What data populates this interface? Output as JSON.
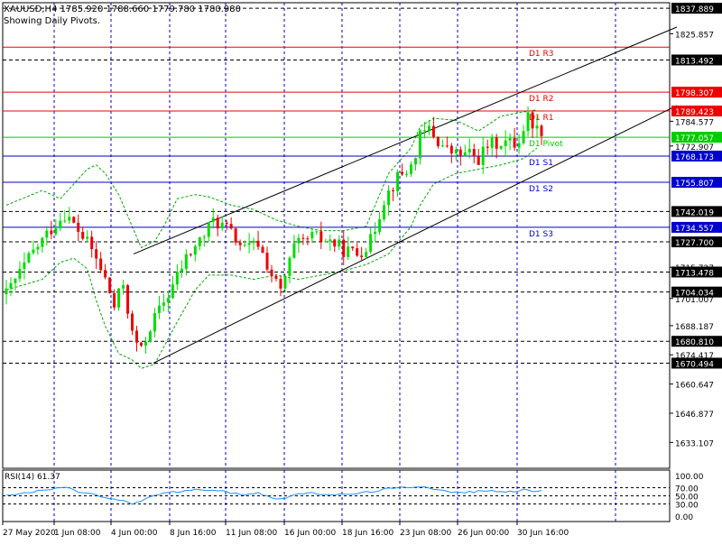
{
  "header": {
    "symbol_line": "XAUUSD,H4  1785.920 1788.660 1779.780 1780.980",
    "subtitle": "Showing Daily Pivots."
  },
  "colors": {
    "bull": "#00dd00",
    "bear": "#ee0000",
    "pivot_resistance": "#ee0000",
    "pivot_center": "#00cc00",
    "pivot_support": "#0000cc",
    "grid": "#0000cc",
    "bands": "#00aa00",
    "rsi_line": "#1e90ff"
  },
  "chart_data": [
    {
      "type": "candlestick",
      "symbol": "XAUUSD",
      "timeframe": "H4",
      "ylim": [
        1620.9,
        1840.5
      ],
      "y_ticks": [
        "1837.889",
        "1825.857",
        "1813.492",
        "1798.307",
        "1789.423",
        "1784.577",
        "1777.057",
        "1772.907",
        "1768.173",
        "1755.807",
        "1742.019",
        "1734.557",
        "1727.700",
        "1715.727",
        "1713.478",
        "1704.034",
        "1701.007",
        "1688.187",
        "1680.810",
        "1674.417",
        "1670.494",
        "1660.647",
        "1646.877",
        "1633.107"
      ],
      "x_ticks": [
        "27 May 2020",
        "1 Jun 08:00",
        "4 Jun 00:00",
        "8 Jun 16:00",
        "11 Jun 08:00",
        "16 Jun 00:00",
        "18 Jun 16:00",
        "23 Jun 08:00",
        "26 Jun 00:00",
        "30 Jun 16:00"
      ],
      "pivot_levels": [
        {
          "name": "D1 R3",
          "value": 1819.557,
          "kind": "resistance"
        },
        {
          "name": "D1 R2",
          "value": 1798.307,
          "kind": "resistance"
        },
        {
          "name": "D1 R1",
          "value": 1789.423,
          "kind": "resistance"
        },
        {
          "name": "D1 Pivot",
          "value": 1777.057,
          "kind": "pivot"
        },
        {
          "name": "D1 S1",
          "value": 1768.173,
          "kind": "support"
        },
        {
          "name": "D1 S2",
          "value": 1755.807,
          "kind": "support"
        },
        {
          "name": "D1 S3",
          "value": 1734.557,
          "kind": "support"
        }
      ],
      "dashed_levels": [
        1837.889,
        1813.492,
        1742.019,
        1727.7,
        1713.478,
        1704.034,
        1680.81,
        1670.494
      ],
      "channel": {
        "upper": [
          [
            "1 Jun 08:00 +4h",
            1722.0
          ],
          [
            "30 Jun 16:00 +24h",
            1829.0
          ]
        ],
        "lower": [
          [
            "4 Jun 00:00 +12h",
            1670.5
          ],
          [
            "30 Jun 16:00 +24h",
            1792.0
          ]
        ]
      },
      "close_path": [
        [
          0,
          1703
        ],
        [
          6,
          1723
        ],
        [
          10,
          1734
        ],
        [
          13,
          1741
        ],
        [
          16,
          1733
        ],
        [
          19,
          1724
        ],
        [
          22,
          1710
        ],
        [
          24,
          1697
        ],
        [
          26,
          1708
        ],
        [
          28,
          1684
        ],
        [
          30,
          1676
        ],
        [
          32,
          1688
        ],
        [
          36,
          1703
        ],
        [
          40,
          1720
        ],
        [
          44,
          1731
        ],
        [
          46,
          1738
        ],
        [
          49,
          1734
        ],
        [
          53,
          1724
        ],
        [
          56,
          1727
        ],
        [
          59,
          1712
        ],
        [
          61,
          1704
        ],
        [
          64,
          1725
        ],
        [
          68,
          1730
        ],
        [
          72,
          1728
        ],
        [
          75,
          1724
        ],
        [
          78,
          1722
        ],
        [
          81,
          1728
        ],
        [
          84,
          1748
        ],
        [
          87,
          1758
        ],
        [
          90,
          1763
        ],
        [
          92,
          1777
        ],
        [
          94,
          1781
        ],
        [
          96,
          1775
        ],
        [
          98,
          1771
        ],
        [
          100,
          1769
        ],
        [
          103,
          1769
        ],
        [
          105,
          1767
        ],
        [
          107,
          1773
        ],
        [
          110,
          1775
        ],
        [
          113,
          1774
        ],
        [
          114,
          1776
        ],
        [
          116,
          1787
        ],
        [
          118,
          1781
        ]
      ],
      "bands": {
        "upper_x": [
          0,
          8,
          12,
          15,
          18,
          20,
          22,
          25,
          28,
          30,
          33,
          35,
          38,
          42,
          45,
          50,
          55,
          60,
          65,
          70,
          75,
          80,
          85,
          90,
          92,
          95,
          100,
          105,
          110,
          115,
          118
        ],
        "upper": [
          1745,
          1752,
          1748,
          1755,
          1762,
          1764,
          1760,
          1750,
          1735,
          1725,
          1728,
          1735,
          1748,
          1750,
          1749,
          1745,
          1743,
          1738,
          1735,
          1733,
          1733,
          1735,
          1760,
          1772,
          1782,
          1786,
          1785,
          1780,
          1787,
          1789,
          1790
        ],
        "lower": [
          1705,
          1710,
          1718,
          1720,
          1715,
          1700,
          1688,
          1675,
          1672,
          1668,
          1670,
          1678,
          1690,
          1705,
          1712,
          1712,
          1710,
          1712,
          1710,
          1712,
          1714,
          1717,
          1722,
          1735,
          1745,
          1755,
          1760,
          1762,
          1764,
          1767,
          1772
        ]
      }
    },
    {
      "type": "line",
      "title": "RSI(14) 61.37",
      "ylim": [
        0,
        100
      ],
      "y_ticks": [
        "100.00",
        "70.00",
        "50.00",
        "30.00",
        "0.00"
      ],
      "levels": [
        70,
        50,
        30
      ],
      "rsi_path": [
        [
          0,
          52
        ],
        [
          5,
          58
        ],
        [
          10,
          66
        ],
        [
          13,
          72
        ],
        [
          16,
          60
        ],
        [
          19,
          55
        ],
        [
          22,
          44
        ],
        [
          25,
          40
        ],
        [
          28,
          30
        ],
        [
          30,
          38
        ],
        [
          33,
          52
        ],
        [
          36,
          58
        ],
        [
          40,
          62
        ],
        [
          44,
          66
        ],
        [
          47,
          64
        ],
        [
          50,
          56
        ],
        [
          53,
          54
        ],
        [
          56,
          58
        ],
        [
          59,
          45
        ],
        [
          61,
          42
        ],
        [
          64,
          54
        ],
        [
          68,
          56
        ],
        [
          72,
          54
        ],
        [
          75,
          52
        ],
        [
          78,
          56
        ],
        [
          81,
          60
        ],
        [
          84,
          66
        ],
        [
          88,
          70
        ],
        [
          92,
          74
        ],
        [
          95,
          68
        ],
        [
          98,
          60
        ],
        [
          101,
          58
        ],
        [
          104,
          60
        ],
        [
          107,
          62
        ],
        [
          110,
          62
        ],
        [
          113,
          58
        ],
        [
          115,
          66
        ],
        [
          118,
          61
        ]
      ]
    }
  ]
}
